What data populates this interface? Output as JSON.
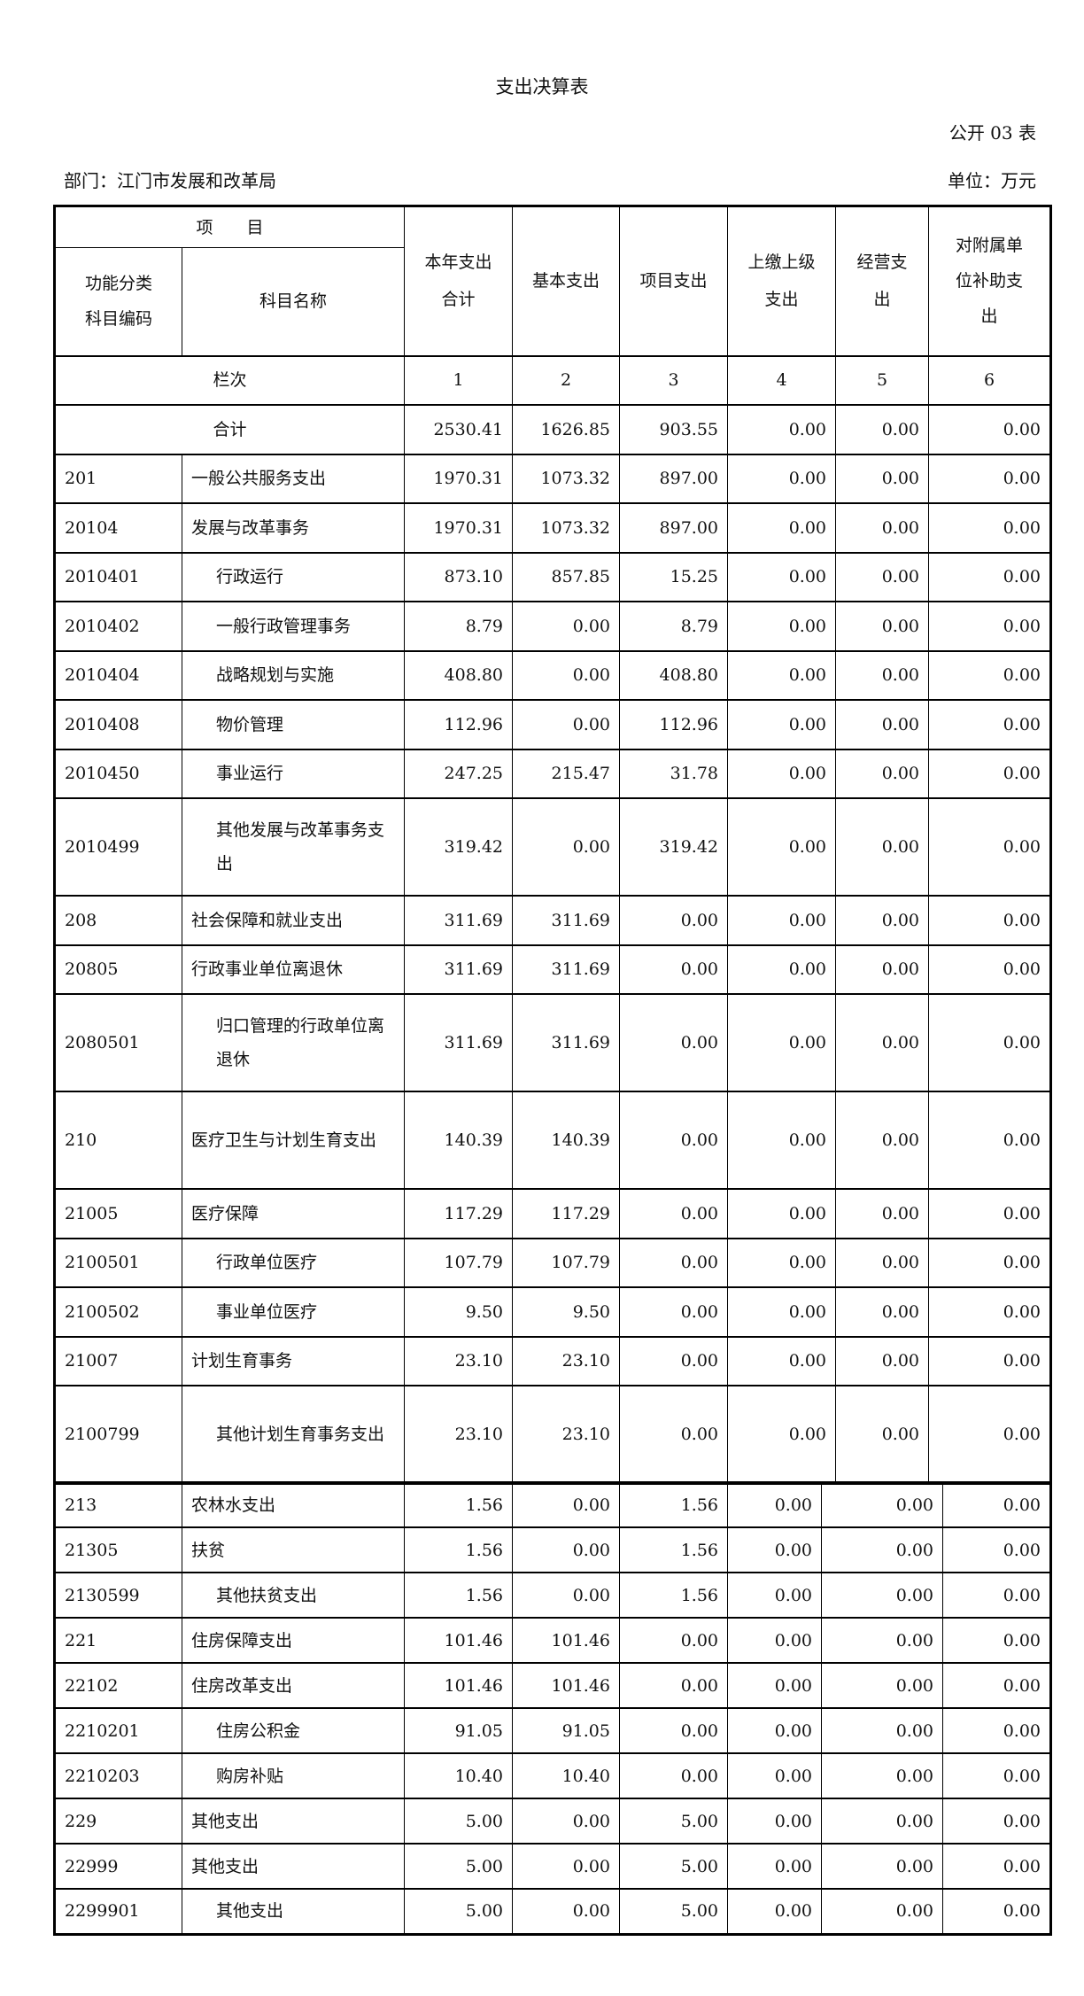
{
  "header": {
    "title": "支出决算表",
    "table_no": "公开 03 表",
    "department": "部门：江门市发展和改革局",
    "unit": "单位：万元"
  },
  "columns": {
    "item": "项　　目",
    "func_code": "功能分类\n科目编码",
    "subject_name": "科目名称",
    "total": "本年支出\n合计",
    "basic": "基本支出",
    "project": "项目支出",
    "remit": "上缴上级\n支出",
    "business": "经营支\n出",
    "subsidy": "对附属单\n位补助支\n出"
  },
  "index_row": {
    "label": "栏次",
    "cols": [
      "1",
      "2",
      "3",
      "4",
      "5",
      "6"
    ]
  },
  "total_row": {
    "label": "合计",
    "values": [
      "2530.41",
      "1626.85",
      "903.55",
      "0.00",
      "0.00",
      "0.00"
    ]
  },
  "rows": [
    {
      "code": "201",
      "name": "一般公共服务支出",
      "indent": false,
      "values": [
        "1970.31",
        "1073.32",
        "897.00",
        "0.00",
        "0.00",
        "0.00"
      ]
    },
    {
      "code": "20104",
      "name": "发展与改革事务",
      "indent": false,
      "values": [
        "1970.31",
        "1073.32",
        "897.00",
        "0.00",
        "0.00",
        "0.00"
      ]
    },
    {
      "code": "2010401",
      "name": "行政运行",
      "indent": true,
      "values": [
        "873.10",
        "857.85",
        "15.25",
        "0.00",
        "0.00",
        "0.00"
      ]
    },
    {
      "code": "2010402",
      "name": "一般行政管理事务",
      "indent": true,
      "values": [
        "8.79",
        "0.00",
        "8.79",
        "0.00",
        "0.00",
        "0.00"
      ]
    },
    {
      "code": "2010404",
      "name": "战略规划与实施",
      "indent": true,
      "values": [
        "408.80",
        "0.00",
        "408.80",
        "0.00",
        "0.00",
        "0.00"
      ]
    },
    {
      "code": "2010408",
      "name": "物价管理",
      "indent": true,
      "values": [
        "112.96",
        "0.00",
        "112.96",
        "0.00",
        "0.00",
        "0.00"
      ]
    },
    {
      "code": "2010450",
      "name": "事业运行",
      "indent": true,
      "values": [
        "247.25",
        "215.47",
        "31.78",
        "0.00",
        "0.00",
        "0.00"
      ]
    },
    {
      "code": "2010499",
      "name": "其他发展与改革事务支出",
      "indent": true,
      "values": [
        "319.42",
        "0.00",
        "319.42",
        "0.00",
        "0.00",
        "0.00"
      ]
    },
    {
      "code": "208",
      "name": "社会保障和就业支出",
      "indent": false,
      "values": [
        "311.69",
        "311.69",
        "0.00",
        "0.00",
        "0.00",
        "0.00"
      ]
    },
    {
      "code": "20805",
      "name": "行政事业单位离退休",
      "indent": false,
      "values": [
        "311.69",
        "311.69",
        "0.00",
        "0.00",
        "0.00",
        "0.00"
      ]
    },
    {
      "code": "2080501",
      "name": "归口管理的行政单位离退休",
      "indent": true,
      "values": [
        "311.69",
        "311.69",
        "0.00",
        "0.00",
        "0.00",
        "0.00"
      ]
    },
    {
      "code": "210",
      "name": "医疗卫生与计划生育支出",
      "indent": false,
      "values": [
        "140.39",
        "140.39",
        "0.00",
        "0.00",
        "0.00",
        "0.00"
      ]
    },
    {
      "code": "21005",
      "name": "医疗保障",
      "indent": false,
      "values": [
        "117.29",
        "117.29",
        "0.00",
        "0.00",
        "0.00",
        "0.00"
      ]
    },
    {
      "code": "2100501",
      "name": "行政单位医疗",
      "indent": true,
      "values": [
        "107.79",
        "107.79",
        "0.00",
        "0.00",
        "0.00",
        "0.00"
      ]
    },
    {
      "code": "2100502",
      "name": "事业单位医疗",
      "indent": true,
      "values": [
        "9.50",
        "9.50",
        "0.00",
        "0.00",
        "0.00",
        "0.00"
      ]
    },
    {
      "code": "21007",
      "name": "计划生育事务",
      "indent": false,
      "values": [
        "23.10",
        "23.10",
        "0.00",
        "0.00",
        "0.00",
        "0.00"
      ]
    },
    {
      "code": "2100799",
      "name": "其他计划生育事务支出",
      "indent": true,
      "values": [
        "23.10",
        "23.10",
        "0.00",
        "0.00",
        "0.00",
        "0.00"
      ]
    },
    {
      "code": "213",
      "name": "农林水支出",
      "indent": false,
      "values": [
        "1.56",
        "0.00",
        "1.56",
        "0.00",
        "0.00",
        "0.00"
      ]
    },
    {
      "code": "21305",
      "name": "扶贫",
      "indent": false,
      "values": [
        "1.56",
        "0.00",
        "1.56",
        "0.00",
        "0.00",
        "0.00"
      ]
    },
    {
      "code": "2130599",
      "name": "其他扶贫支出",
      "indent": true,
      "values": [
        "1.56",
        "0.00",
        "1.56",
        "0.00",
        "0.00",
        "0.00"
      ]
    },
    {
      "code": "221",
      "name": "住房保障支出",
      "indent": false,
      "values": [
        "101.46",
        "101.46",
        "0.00",
        "0.00",
        "0.00",
        "0.00"
      ]
    },
    {
      "code": "22102",
      "name": "住房改革支出",
      "indent": false,
      "values": [
        "101.46",
        "101.46",
        "0.00",
        "0.00",
        "0.00",
        "0.00"
      ]
    },
    {
      "code": "2210201",
      "name": "住房公积金",
      "indent": true,
      "values": [
        "91.05",
        "91.05",
        "0.00",
        "0.00",
        "0.00",
        "0.00"
      ]
    },
    {
      "code": "2210203",
      "name": "购房补贴",
      "indent": true,
      "values": [
        "10.40",
        "10.40",
        "0.00",
        "0.00",
        "0.00",
        "0.00"
      ]
    },
    {
      "code": "229",
      "name": "其他支出",
      "indent": false,
      "values": [
        "5.00",
        "0.00",
        "5.00",
        "0.00",
        "0.00",
        "0.00"
      ]
    },
    {
      "code": "22999",
      "name": "其他支出",
      "indent": false,
      "values": [
        "5.00",
        "0.00",
        "5.00",
        "0.00",
        "0.00",
        "0.00"
      ]
    },
    {
      "code": "2299901",
      "name": "其他支出",
      "indent": true,
      "values": [
        "5.00",
        "0.00",
        "5.00",
        "0.00",
        "0.00",
        "0.00"
      ]
    }
  ]
}
